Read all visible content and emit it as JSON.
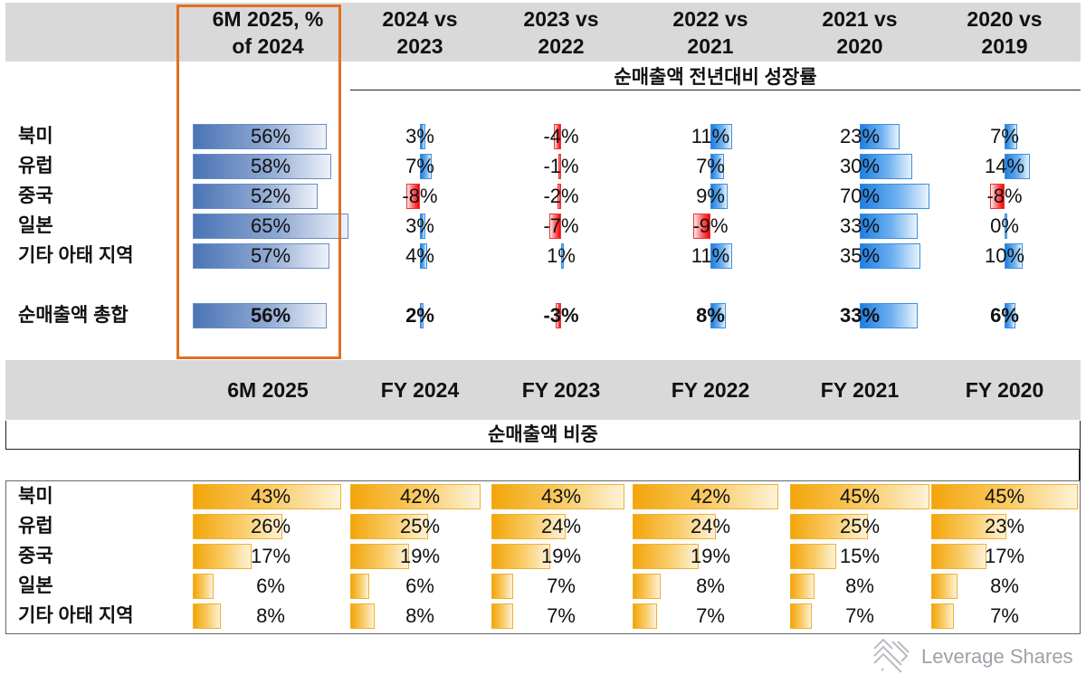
{
  "top": {
    "headers": [
      "6M 2025, %\nof 2024",
      "2024 vs\n2023",
      "2023 vs\n2022",
      "2022 vs\n2021",
      "2021 vs\n2020",
      "2020 vs\n2019"
    ],
    "subtitle": "순매출액 전년대비 성장률"
  },
  "bottom": {
    "headers": [
      "6M 2025",
      "FY 2024",
      "FY 2023",
      "FY 2022",
      "FY 2021",
      "FY 2020"
    ],
    "subtitle": "순매출액 비중"
  },
  "brand": "Leverage Shares",
  "colors": {
    "highlight_box": "#e07020",
    "header_band": "#d9d9d9",
    "positive": "#1e7fe0",
    "negative": "#ff0000",
    "share": "#f3a50a",
    "progress": "#4a74b4"
  },
  "chart_data": [
    {
      "type": "bar",
      "subtitle": "",
      "categories": [
        "북미",
        "유럽",
        "중국",
        "일본",
        "기타 아태 지역",
        "순매출액 총합"
      ],
      "series": [
        {
          "name": "6M 2025, % of 2024",
          "values": [
            56,
            58,
            52,
            65,
            57,
            56
          ],
          "labels": [
            "56%",
            "58%",
            "52%",
            "65%",
            "57%",
            "56%"
          ]
        },
        {
          "name": "2024 vs 2023",
          "values": [
            3,
            7,
            -8,
            3,
            4,
            2
          ],
          "labels": [
            "3%",
            "7%",
            "-8%",
            "3%",
            "4%",
            "2%"
          ]
        },
        {
          "name": "2023 vs 2022",
          "values": [
            -4,
            -1,
            -2,
            -7,
            1,
            -3
          ],
          "labels": [
            "-4%",
            "-1%",
            "-2%",
            "-7%",
            "1%",
            "-3%"
          ]
        },
        {
          "name": "2022 vs 2021",
          "values": [
            11,
            7,
            9,
            -9,
            11,
            8
          ],
          "labels": [
            "11%",
            "7%",
            "9%",
            "-9%",
            "11%",
            "8%"
          ]
        },
        {
          "name": "2021 vs 2020",
          "values": [
            23,
            30,
            70,
            33,
            35,
            33
          ],
          "labels": [
            "23%",
            "30%",
            "70%",
            "33%",
            "35%",
            "33%"
          ]
        },
        {
          "name": "2020 vs 2019",
          "values": [
            7,
            14,
            -8,
            0,
            10,
            6
          ],
          "labels": [
            "7%",
            "14%",
            "-8%",
            "0%",
            "10%",
            "6%"
          ]
        }
      ]
    },
    {
      "type": "bar",
      "categories": [
        "북미",
        "유럽",
        "중국",
        "일본",
        "기타 아태 지역"
      ],
      "series": [
        {
          "name": "6M 2025",
          "values": [
            43,
            26,
            17,
            6,
            8
          ],
          "labels": [
            "43%",
            "26%",
            "17%",
            "6%",
            "8%"
          ]
        },
        {
          "name": "FY 2024",
          "values": [
            42,
            25,
            19,
            6,
            8
          ],
          "labels": [
            "42%",
            "25%",
            "19%",
            "6%",
            "8%"
          ]
        },
        {
          "name": "FY 2023",
          "values": [
            43,
            24,
            19,
            7,
            7
          ],
          "labels": [
            "43%",
            "24%",
            "19%",
            "7%",
            "7%"
          ]
        },
        {
          "name": "FY 2022",
          "values": [
            42,
            24,
            19,
            8,
            7
          ],
          "labels": [
            "42%",
            "24%",
            "19%",
            "8%",
            "7%"
          ]
        },
        {
          "name": "FY 2021",
          "values": [
            45,
            25,
            15,
            8,
            7
          ],
          "labels": [
            "45%",
            "25%",
            "15%",
            "8%",
            "7%"
          ]
        },
        {
          "name": "FY 2020",
          "values": [
            45,
            23,
            17,
            8,
            7
          ],
          "labels": [
            "45%",
            "23%",
            "17%",
            "8%",
            "7%"
          ]
        }
      ]
    }
  ]
}
